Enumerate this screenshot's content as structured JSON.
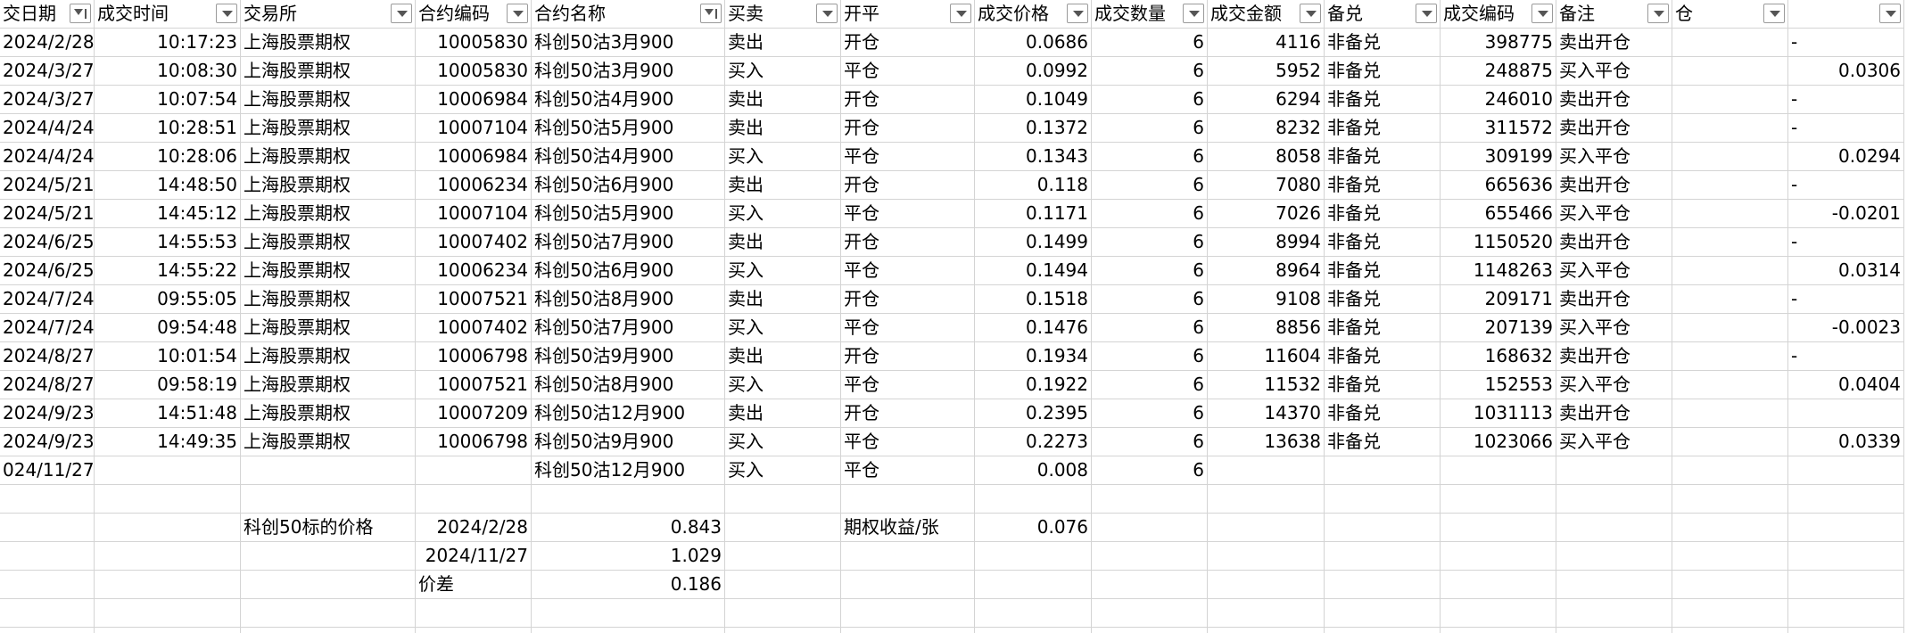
{
  "table": {
    "headers": [
      "交日期",
      "成交时间",
      "交易所",
      "合约编码",
      "合约名称",
      "买卖",
      "开平",
      "成交价格",
      "成交数量",
      "成交金额",
      "备兑",
      "成交编码",
      "备注",
      "仓",
      null
    ],
    "rows": [
      [
        "2024/2/28",
        "10:17:23",
        "上海股票期权",
        10005830,
        "科创50沽3月900",
        "卖出",
        "开仓",
        0.0686,
        6,
        4116,
        "非备兑",
        398775,
        "卖出开仓",
        null,
        "-"
      ],
      [
        "2024/3/27",
        "10:08:30",
        "上海股票期权",
        10005830,
        "科创50沽3月900",
        "买入",
        "平仓",
        0.0992,
        6,
        5952,
        "非备兑",
        248875,
        "买入平仓",
        null,
        0.0306
      ],
      [
        "2024/3/27",
        "10:07:54",
        "上海股票期权",
        10006984,
        "科创50沽4月900",
        "卖出",
        "开仓",
        0.1049,
        6,
        6294,
        "非备兑",
        246010,
        "卖出开仓",
        null,
        "-"
      ],
      [
        "2024/4/24",
        "10:28:51",
        "上海股票期权",
        10007104,
        "科创50沽5月900",
        "卖出",
        "开仓",
        0.1372,
        6,
        8232,
        "非备兑",
        311572,
        "卖出开仓",
        null,
        "-"
      ],
      [
        "2024/4/24",
        "10:28:06",
        "上海股票期权",
        10006984,
        "科创50沽4月900",
        "买入",
        "平仓",
        0.1343,
        6,
        8058,
        "非备兑",
        309199,
        "买入平仓",
        null,
        0.0294
      ],
      [
        "2024/5/21",
        "14:48:50",
        "上海股票期权",
        10006234,
        "科创50沽6月900",
        "卖出",
        "开仓",
        0.118,
        6,
        7080,
        "非备兑",
        665636,
        "卖出开仓",
        null,
        "-"
      ],
      [
        "2024/5/21",
        "14:45:12",
        "上海股票期权",
        10007104,
        "科创50沽5月900",
        "买入",
        "平仓",
        0.1171,
        6,
        7026,
        "非备兑",
        655466,
        "买入平仓",
        null,
        -0.0201
      ],
      [
        "2024/6/25",
        "14:55:53",
        "上海股票期权",
        10007402,
        "科创50沽7月900",
        "卖出",
        "开仓",
        0.1499,
        6,
        8994,
        "非备兑",
        1150520,
        "卖出开仓",
        null,
        "-"
      ],
      [
        "2024/6/25",
        "14:55:22",
        "上海股票期权",
        10006234,
        "科创50沽6月900",
        "买入",
        "平仓",
        0.1494,
        6,
        8964,
        "非备兑",
        1148263,
        "买入平仓",
        null,
        0.0314
      ],
      [
        "2024/7/24",
        "09:55:05",
        "上海股票期权",
        10007521,
        "科创50沽8月900",
        "卖出",
        "开仓",
        0.1518,
        6,
        9108,
        "非备兑",
        209171,
        "卖出开仓",
        null,
        "-"
      ],
      [
        "2024/7/24",
        "09:54:48",
        "上海股票期权",
        10007402,
        "科创50沽7月900",
        "买入",
        "平仓",
        0.1476,
        6,
        8856,
        "非备兑",
        207139,
        "买入平仓",
        null,
        -0.0023
      ],
      [
        "2024/8/27",
        "10:01:54",
        "上海股票期权",
        10006798,
        "科创50沽9月900",
        "卖出",
        "开仓",
        0.1934,
        6,
        11604,
        "非备兑",
        168632,
        "卖出开仓",
        null,
        "-"
      ],
      [
        "2024/8/27",
        "09:58:19",
        "上海股票期权",
        10007521,
        "科创50沽8月900",
        "买入",
        "平仓",
        0.1922,
        6,
        11532,
        "非备兑",
        152553,
        "买入平仓",
        null,
        0.0404
      ],
      [
        "2024/9/23",
        "14:51:48",
        "上海股票期权",
        10007209,
        "科创50沽12月900",
        "卖出",
        "开仓",
        0.2395,
        6,
        14370,
        "非备兑",
        1031113,
        "卖出开仓",
        null,
        null
      ],
      [
        "2024/9/23",
        "14:49:35",
        "上海股票期权",
        10006798,
        "科创50沽9月900",
        "买入",
        "平仓",
        0.2273,
        6,
        13638,
        "非备兑",
        1023066,
        "买入平仓",
        null,
        0.0339
      ],
      [
        "024/11/27",
        null,
        null,
        null,
        "科创50沽12月900",
        "买入",
        "平仓",
        0.008,
        6,
        null,
        null,
        null,
        null,
        null,
        null
      ]
    ],
    "summary": [
      [
        null,
        null,
        "科创50标的价格",
        "2024/2/28",
        0.843,
        null,
        "期权收益/张",
        0.076,
        null,
        null,
        null,
        null,
        null,
        null,
        null
      ],
      [
        null,
        null,
        null,
        "2024/11/27",
        1.029,
        null,
        null,
        null,
        null,
        null,
        null,
        null,
        null,
        null,
        null
      ],
      [
        null,
        null,
        null,
        "价差",
        0.186,
        null,
        null,
        null,
        null,
        null,
        null,
        null,
        null,
        null,
        null
      ]
    ]
  }
}
